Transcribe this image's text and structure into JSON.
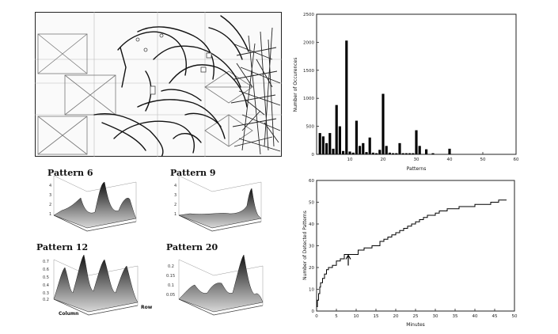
{
  "figure": {
    "surface_titles": [
      "Pattern 6",
      "Pattern 9",
      "Pattern 12",
      "Pattern 20"
    ],
    "surface_axis_labels": {
      "column": "Column",
      "row": "Row"
    }
  },
  "chart_data": [
    {
      "type": "bar",
      "title": "",
      "xlabel": "Patterns",
      "ylabel": "Number of Occurences",
      "xlim": [
        0,
        60
      ],
      "ylim": [
        0,
        2500
      ],
      "xticks": [
        10,
        20,
        30,
        40,
        50,
        60
      ],
      "yticks": [
        0,
        500,
        1000,
        1500,
        2000,
        2500
      ],
      "x": [
        1,
        2,
        3,
        4,
        5,
        6,
        7,
        8,
        9,
        10,
        11,
        12,
        13,
        14,
        15,
        16,
        17,
        18,
        19,
        20,
        21,
        22,
        23,
        24,
        25,
        26,
        27,
        28,
        29,
        30,
        31,
        33,
        35,
        40
      ],
      "values": [
        380,
        320,
        200,
        380,
        100,
        880,
        500,
        60,
        2030,
        50,
        30,
        600,
        150,
        200,
        40,
        300,
        30,
        20,
        80,
        1080,
        150,
        30,
        20,
        20,
        200,
        20,
        20,
        20,
        20,
        430,
        150,
        90,
        20,
        100
      ]
    },
    {
      "type": "line",
      "title": "",
      "xlabel": "Minutes",
      "ylabel": "Number of Detected Patterns",
      "xlim": [
        0,
        50
      ],
      "ylim": [
        0,
        60
      ],
      "xticks": [
        0,
        5,
        10,
        15,
        20,
        25,
        30,
        35,
        40,
        45,
        50
      ],
      "yticks": [
        0,
        10,
        20,
        30,
        40,
        50,
        60
      ],
      "x": [
        0,
        0.2,
        0.5,
        0.8,
        1,
        1.5,
        2,
        2.5,
        3,
        4,
        5,
        6,
        7,
        10,
        10.5,
        12,
        14,
        16,
        17,
        18,
        19,
        20,
        21,
        22,
        23,
        24,
        25,
        26,
        27,
        28,
        29,
        30,
        31,
        32,
        33,
        35,
        36,
        37,
        38,
        40,
        42,
        44,
        46,
        47,
        48
      ],
      "values": [
        2,
        5,
        8,
        11,
        13,
        15,
        17,
        19,
        20,
        21,
        23,
        24,
        26,
        26,
        28,
        29,
        30,
        32,
        33,
        34,
        35,
        36,
        37,
        38,
        39,
        40,
        41,
        42,
        43,
        44,
        44,
        45,
        46,
        46,
        47,
        47,
        48,
        48,
        48,
        49,
        49,
        50,
        51,
        51,
        51
      ],
      "annotations": [
        {
          "type": "arrow",
          "x": 8,
          "y": 26
        }
      ]
    }
  ]
}
